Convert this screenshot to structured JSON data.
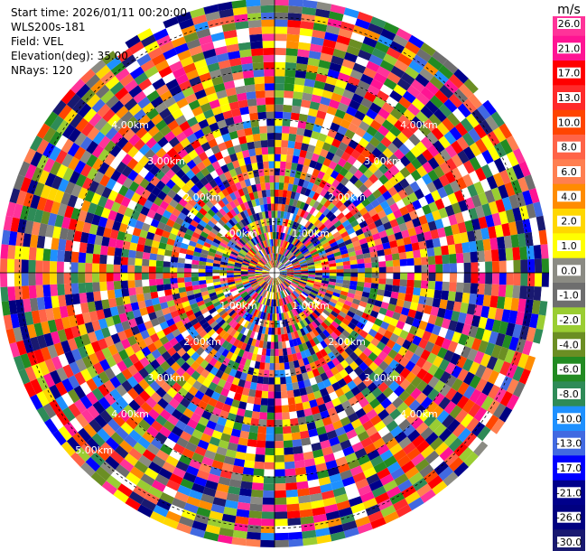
{
  "info": {
    "start_time": "Start time: 2026/01/11 00:20:00",
    "instrument": "WLS200s-181",
    "field": "Field: VEL",
    "elevation": "Elevation(deg): 35.00",
    "nrays": "NRays: 120"
  },
  "chart_data": {
    "type": "heatmap",
    "projection": "polar-ppi",
    "field": "VEL",
    "n_rays": 120,
    "range_rings_km": [
      "1.00km",
      "2.00km",
      "3.00km",
      "4.00km",
      "5.00km"
    ],
    "max_range_km": 5.0,
    "colorbar": {
      "unit": "m/s",
      "ticks": [
        "26.0",
        "21.0",
        "17.0",
        "13.0",
        "10.0",
        "8.0",
        "6.0",
        "4.0",
        "2.0",
        "1.0",
        "0.0",
        "-1.0",
        "-2.0",
        "-4.0",
        "-6.0",
        "-8.0",
        "-10.0",
        "-13.0",
        "-17.0",
        "-21.0",
        "-26.0",
        "-30.0"
      ],
      "colors": [
        "#ff3399",
        "#ff1493",
        "#ff0000",
        "#ff2a2a",
        "#ff4500",
        "#ff6347",
        "#ff7f50",
        "#ff8c00",
        "#ffd700",
        "#ffff00",
        "#8b8b83",
        "#6e6e6e",
        "#9acd32",
        "#6b8e23",
        "#228b22",
        "#2e8b57",
        "#1e90ff",
        "#4169e1",
        "#0000ff",
        "#00008b",
        "#000080",
        "#191970"
      ]
    }
  }
}
